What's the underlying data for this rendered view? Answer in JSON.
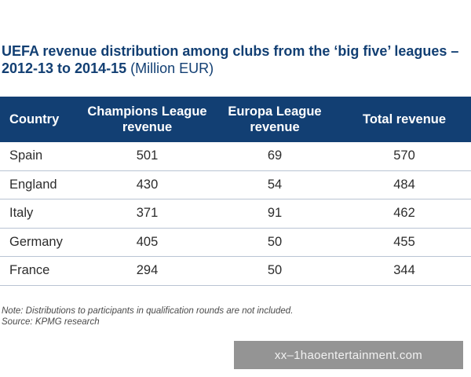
{
  "title": {
    "main": "UEFA revenue distribution among clubs from the ‘big five’ leagues – 2012-13 to 2014-15",
    "unit": " (Million EUR)"
  },
  "chart_data": {
    "type": "table",
    "columns": [
      "Country",
      "Champions League revenue",
      "Europa League revenue",
      "Total revenue"
    ],
    "rows": [
      {
        "country": "Spain",
        "champions": "501",
        "europa": "69",
        "total": "570"
      },
      {
        "country": "England",
        "champions": "430",
        "europa": "54",
        "total": "484"
      },
      {
        "country": "Italy",
        "champions": "371",
        "europa": "91",
        "total": "462"
      },
      {
        "country": "Germany",
        "champions": "405",
        "europa": "50",
        "total": "455"
      },
      {
        "country": "France",
        "champions": "294",
        "europa": "50",
        "total": "344"
      }
    ]
  },
  "notes": {
    "note": "Note: Distributions to participants in qualification rounds are not included.",
    "source": "Source: KPMG research"
  },
  "watermark": "xx–1haoentertainment.com",
  "colors": {
    "header_bg": "#123f73",
    "title": "#123f73"
  }
}
